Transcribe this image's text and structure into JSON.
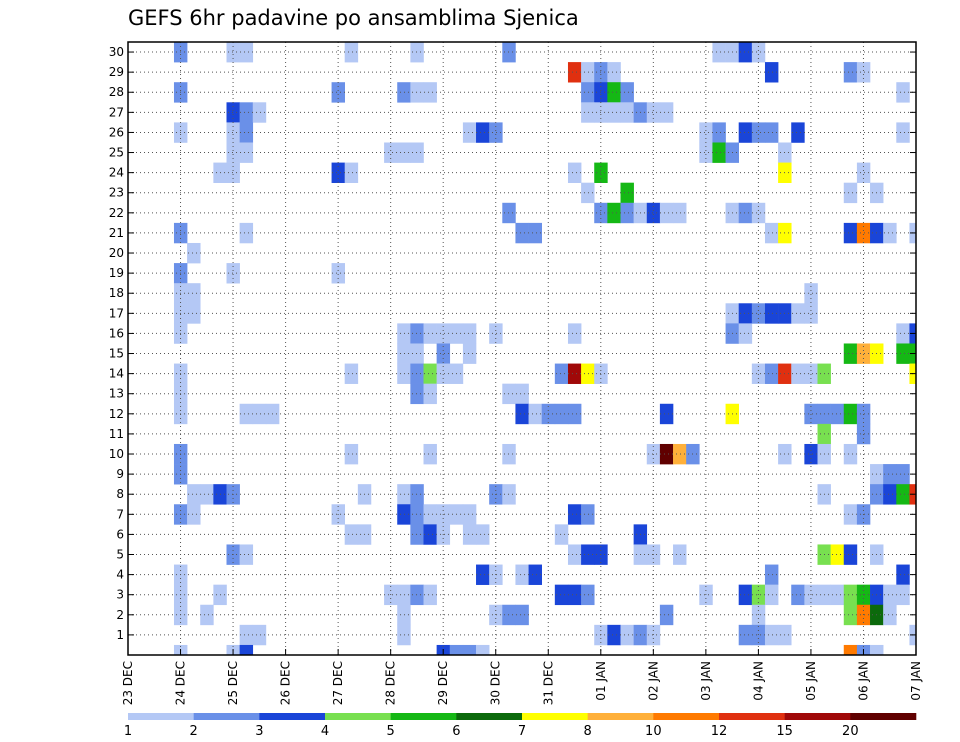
{
  "chart_data": {
    "type": "heatmap",
    "title": "GEFS 6hr padavine po ansamblima Sjenica",
    "x_tick_labels": [
      "23 DEC",
      "24 DEC",
      "25 DEC",
      "26 DEC",
      "27 DEC",
      "28 DEC",
      "29 DEC",
      "30 DEC",
      "31 DEC",
      "01 JAN",
      "02 JAN",
      "03 JAN",
      "04 JAN",
      "05 JAN",
      "06 JAN",
      "07 JAN"
    ],
    "y_tick_labels": [
      "1",
      "2",
      "3",
      "4",
      "5",
      "6",
      "7",
      "8",
      "9",
      "10",
      "11",
      "12",
      "13",
      "14",
      "15",
      "16",
      "17",
      "18",
      "19",
      "20",
      "21",
      "22",
      "23",
      "24",
      "25",
      "26",
      "27",
      "28",
      "29",
      "30"
    ],
    "x_range": [
      0,
      60
    ],
    "y_range": [
      0,
      30.5
    ],
    "grid": true,
    "colorbar": {
      "placement": "bottom",
      "bounds": [
        1,
        2,
        3,
        4,
        5,
        6,
        7,
        8,
        10,
        12,
        15,
        20
      ],
      "labels": [
        "1",
        "2",
        "3",
        "4",
        "5",
        "6",
        "7",
        "8",
        "10",
        "12",
        "15",
        "20"
      ],
      "colors": [
        "#b4c8f5",
        "#6a90e8",
        "#1a45d8",
        "#78e050",
        "#15b815",
        "#0c6a0c",
        "#ffff00",
        "#ffb03a",
        "#ff7a00",
        "#e03010",
        "#a00808",
        "#600000"
      ]
    },
    "cells": [
      [
        4,
        30,
        1
      ],
      [
        8,
        30,
        0
      ],
      [
        9,
        30,
        0
      ],
      [
        17,
        30,
        0
      ],
      [
        22,
        30,
        0
      ],
      [
        29,
        30,
        1
      ],
      [
        45,
        30,
        0
      ],
      [
        46,
        30,
        0
      ],
      [
        47,
        30,
        2
      ],
      [
        48,
        30,
        0
      ],
      [
        34,
        29,
        9
      ],
      [
        35,
        29,
        0
      ],
      [
        36,
        29,
        1
      ],
      [
        37,
        29,
        0
      ],
      [
        49,
        29,
        2
      ],
      [
        55,
        29,
        1
      ],
      [
        56,
        29,
        0
      ],
      [
        4,
        28,
        1
      ],
      [
        16,
        28,
        1
      ],
      [
        21,
        28,
        1
      ],
      [
        22,
        28,
        0
      ],
      [
        23,
        28,
        0
      ],
      [
        35,
        28,
        1
      ],
      [
        36,
        28,
        2
      ],
      [
        37,
        28,
        4
      ],
      [
        38,
        28,
        1
      ],
      [
        59,
        28,
        0
      ],
      [
        8,
        27,
        2
      ],
      [
        9,
        27,
        1
      ],
      [
        10,
        27,
        0
      ],
      [
        35,
        27,
        0
      ],
      [
        36,
        27,
        0
      ],
      [
        37,
        27,
        0
      ],
      [
        38,
        27,
        0
      ],
      [
        39,
        27,
        1
      ],
      [
        40,
        27,
        0
      ],
      [
        41,
        27,
        0
      ],
      [
        4,
        26,
        0
      ],
      [
        8,
        26,
        0
      ],
      [
        9,
        26,
        1
      ],
      [
        26,
        26,
        0
      ],
      [
        27,
        26,
        2
      ],
      [
        28,
        26,
        1
      ],
      [
        44,
        26,
        0
      ],
      [
        45,
        26,
        1
      ],
      [
        47,
        26,
        2
      ],
      [
        48,
        26,
        1
      ],
      [
        49,
        26,
        1
      ],
      [
        51,
        26,
        2
      ],
      [
        59,
        26,
        0
      ],
      [
        8,
        25,
        0
      ],
      [
        9,
        25,
        0
      ],
      [
        20,
        25,
        0
      ],
      [
        21,
        25,
        0
      ],
      [
        22,
        25,
        0
      ],
      [
        44,
        25,
        0
      ],
      [
        45,
        25,
        4
      ],
      [
        46,
        25,
        1
      ],
      [
        50,
        25,
        0
      ],
      [
        7,
        24,
        0
      ],
      [
        8,
        24,
        0
      ],
      [
        16,
        24,
        2
      ],
      [
        17,
        24,
        0
      ],
      [
        34,
        24,
        0
      ],
      [
        36,
        24,
        4
      ],
      [
        50,
        24,
        6
      ],
      [
        56,
        24,
        0
      ],
      [
        35,
        23,
        0
      ],
      [
        38,
        23,
        4
      ],
      [
        55,
        23,
        0
      ],
      [
        57,
        23,
        0
      ],
      [
        29,
        22,
        1
      ],
      [
        36,
        22,
        1
      ],
      [
        37,
        22,
        4
      ],
      [
        38,
        22,
        1
      ],
      [
        39,
        22,
        0
      ],
      [
        40,
        22,
        2
      ],
      [
        41,
        22,
        0
      ],
      [
        42,
        22,
        0
      ],
      [
        46,
        22,
        0
      ],
      [
        47,
        22,
        1
      ],
      [
        48,
        22,
        0
      ],
      [
        4,
        21,
        1
      ],
      [
        9,
        21,
        0
      ],
      [
        30,
        21,
        1
      ],
      [
        31,
        21,
        1
      ],
      [
        49,
        21,
        0
      ],
      [
        50,
        21,
        6
      ],
      [
        55,
        21,
        2
      ],
      [
        56,
        21,
        8
      ],
      [
        57,
        21,
        2
      ],
      [
        58,
        21,
        0
      ],
      [
        60,
        21,
        0
      ],
      [
        5,
        20,
        0
      ],
      [
        4,
        19,
        1
      ],
      [
        8,
        19,
        0
      ],
      [
        16,
        19,
        0
      ],
      [
        4,
        18,
        0
      ],
      [
        5,
        18,
        0
      ],
      [
        52,
        18,
        0
      ],
      [
        4,
        17,
        0
      ],
      [
        5,
        17,
        0
      ],
      [
        46,
        17,
        0
      ],
      [
        47,
        17,
        2
      ],
      [
        48,
        17,
        1
      ],
      [
        49,
        17,
        2
      ],
      [
        50,
        17,
        2
      ],
      [
        51,
        17,
        0
      ],
      [
        52,
        17,
        0
      ],
      [
        4,
        16,
        0
      ],
      [
        21,
        16,
        0
      ],
      [
        22,
        16,
        1
      ],
      [
        23,
        16,
        0
      ],
      [
        24,
        16,
        0
      ],
      [
        25,
        16,
        0
      ],
      [
        26,
        16,
        0
      ],
      [
        28,
        16,
        0
      ],
      [
        34,
        16,
        0
      ],
      [
        46,
        16,
        1
      ],
      [
        47,
        16,
        0
      ],
      [
        59,
        16,
        0
      ],
      [
        60,
        16,
        2
      ],
      [
        21,
        15,
        0
      ],
      [
        22,
        15,
        0
      ],
      [
        24,
        15,
        1
      ],
      [
        26,
        15,
        0
      ],
      [
        55,
        15,
        4
      ],
      [
        56,
        15,
        7
      ],
      [
        57,
        15,
        6
      ],
      [
        59,
        15,
        4
      ],
      [
        60,
        15,
        4
      ],
      [
        4,
        14,
        0
      ],
      [
        17,
        14,
        0
      ],
      [
        21,
        14,
        0
      ],
      [
        22,
        14,
        1
      ],
      [
        23,
        14,
        3
      ],
      [
        24,
        14,
        0
      ],
      [
        25,
        14,
        0
      ],
      [
        33,
        14,
        1
      ],
      [
        34,
        14,
        10
      ],
      [
        35,
        14,
        6
      ],
      [
        36,
        14,
        0
      ],
      [
        48,
        14,
        0
      ],
      [
        49,
        14,
        1
      ],
      [
        50,
        14,
        9
      ],
      [
        51,
        14,
        0
      ],
      [
        52,
        14,
        0
      ],
      [
        53,
        14,
        3
      ],
      [
        60,
        14,
        6
      ],
      [
        4,
        13,
        0
      ],
      [
        22,
        13,
        1
      ],
      [
        23,
        13,
        0
      ],
      [
        29,
        13,
        0
      ],
      [
        30,
        13,
        0
      ],
      [
        4,
        12,
        0
      ],
      [
        9,
        12,
        0
      ],
      [
        10,
        12,
        0
      ],
      [
        11,
        12,
        0
      ],
      [
        30,
        12,
        2
      ],
      [
        31,
        12,
        0
      ],
      [
        32,
        12,
        1
      ],
      [
        33,
        12,
        1
      ],
      [
        34,
        12,
        1
      ],
      [
        41,
        12,
        2
      ],
      [
        46,
        12,
        6
      ],
      [
        52,
        12,
        1
      ],
      [
        53,
        12,
        1
      ],
      [
        54,
        12,
        1
      ],
      [
        55,
        12,
        4
      ],
      [
        56,
        12,
        1
      ],
      [
        53,
        11,
        3
      ],
      [
        56,
        11,
        1
      ],
      [
        4,
        10,
        1
      ],
      [
        17,
        10,
        0
      ],
      [
        23,
        10,
        0
      ],
      [
        29,
        10,
        0
      ],
      [
        40,
        10,
        0
      ],
      [
        41,
        10,
        11
      ],
      [
        42,
        10,
        7
      ],
      [
        43,
        10,
        1
      ],
      [
        50,
        10,
        0
      ],
      [
        52,
        10,
        2
      ],
      [
        53,
        10,
        0
      ],
      [
        55,
        10,
        0
      ],
      [
        4,
        9,
        1
      ],
      [
        57,
        9,
        0
      ],
      [
        58,
        9,
        1
      ],
      [
        59,
        9,
        1
      ],
      [
        5,
        8,
        0
      ],
      [
        6,
        8,
        0
      ],
      [
        7,
        8,
        2
      ],
      [
        8,
        8,
        1
      ],
      [
        18,
        8,
        0
      ],
      [
        21,
        8,
        0
      ],
      [
        22,
        8,
        1
      ],
      [
        28,
        8,
        1
      ],
      [
        29,
        8,
        0
      ],
      [
        53,
        8,
        0
      ],
      [
        57,
        8,
        1
      ],
      [
        58,
        8,
        2
      ],
      [
        59,
        8,
        4
      ],
      [
        60,
        8,
        9
      ],
      [
        4,
        7,
        1
      ],
      [
        5,
        7,
        0
      ],
      [
        16,
        7,
        0
      ],
      [
        21,
        7,
        2
      ],
      [
        22,
        7,
        1
      ],
      [
        23,
        7,
        0
      ],
      [
        24,
        7,
        0
      ],
      [
        25,
        7,
        0
      ],
      [
        26,
        7,
        0
      ],
      [
        34,
        7,
        2
      ],
      [
        35,
        7,
        1
      ],
      [
        55,
        7,
        0
      ],
      [
        56,
        7,
        1
      ],
      [
        17,
        6,
        0
      ],
      [
        18,
        6,
        0
      ],
      [
        22,
        6,
        1
      ],
      [
        23,
        6,
        2
      ],
      [
        24,
        6,
        0
      ],
      [
        26,
        6,
        0
      ],
      [
        27,
        6,
        0
      ],
      [
        33,
        6,
        0
      ],
      [
        39,
        6,
        2
      ],
      [
        8,
        5,
        1
      ],
      [
        9,
        5,
        0
      ],
      [
        34,
        5,
        0
      ],
      [
        35,
        5,
        2
      ],
      [
        36,
        5,
        2
      ],
      [
        39,
        5,
        0
      ],
      [
        40,
        5,
        0
      ],
      [
        42,
        5,
        0
      ],
      [
        53,
        5,
        3
      ],
      [
        54,
        5,
        6
      ],
      [
        55,
        5,
        2
      ],
      [
        57,
        5,
        0
      ],
      [
        4,
        4,
        0
      ],
      [
        27,
        4,
        2
      ],
      [
        28,
        4,
        0
      ],
      [
        30,
        4,
        0
      ],
      [
        31,
        4,
        2
      ],
      [
        49,
        4,
        1
      ],
      [
        59,
        4,
        2
      ],
      [
        4,
        3,
        0
      ],
      [
        7,
        3,
        0
      ],
      [
        20,
        3,
        0
      ],
      [
        21,
        3,
        0
      ],
      [
        22,
        3,
        1
      ],
      [
        23,
        3,
        0
      ],
      [
        33,
        3,
        2
      ],
      [
        34,
        3,
        2
      ],
      [
        35,
        3,
        1
      ],
      [
        44,
        3,
        0
      ],
      [
        47,
        3,
        2
      ],
      [
        48,
        3,
        3
      ],
      [
        49,
        3,
        0
      ],
      [
        51,
        3,
        1
      ],
      [
        52,
        3,
        0
      ],
      [
        53,
        3,
        0
      ],
      [
        54,
        3,
        0
      ],
      [
        55,
        3,
        3
      ],
      [
        56,
        3,
        4
      ],
      [
        57,
        3,
        2
      ],
      [
        58,
        3,
        0
      ],
      [
        59,
        3,
        0
      ],
      [
        4,
        2,
        0
      ],
      [
        6,
        2,
        0
      ],
      [
        21,
        2,
        0
      ],
      [
        28,
        2,
        0
      ],
      [
        29,
        2,
        1
      ],
      [
        30,
        2,
        1
      ],
      [
        41,
        2,
        1
      ],
      [
        48,
        2,
        0
      ],
      [
        55,
        2,
        3
      ],
      [
        56,
        2,
        8
      ],
      [
        57,
        2,
        5
      ],
      [
        58,
        2,
        0
      ],
      [
        9,
        1,
        0
      ],
      [
        10,
        1,
        0
      ],
      [
        21,
        1,
        0
      ],
      [
        36,
        1,
        0
      ],
      [
        37,
        1,
        2
      ],
      [
        38,
        1,
        0
      ],
      [
        39,
        1,
        1
      ],
      [
        40,
        1,
        0
      ],
      [
        47,
        1,
        1
      ],
      [
        48,
        1,
        1
      ],
      [
        49,
        1,
        0
      ],
      [
        50,
        1,
        0
      ],
      [
        60,
        1,
        0
      ],
      [
        4,
        0,
        0
      ],
      [
        8,
        0,
        0
      ],
      [
        9,
        0,
        2
      ],
      [
        24,
        0,
        2
      ],
      [
        25,
        0,
        1
      ],
      [
        26,
        0,
        1
      ],
      [
        27,
        0,
        0
      ],
      [
        55,
        0,
        8
      ],
      [
        56,
        0,
        1
      ],
      [
        57,
        0,
        0
      ]
    ]
  }
}
